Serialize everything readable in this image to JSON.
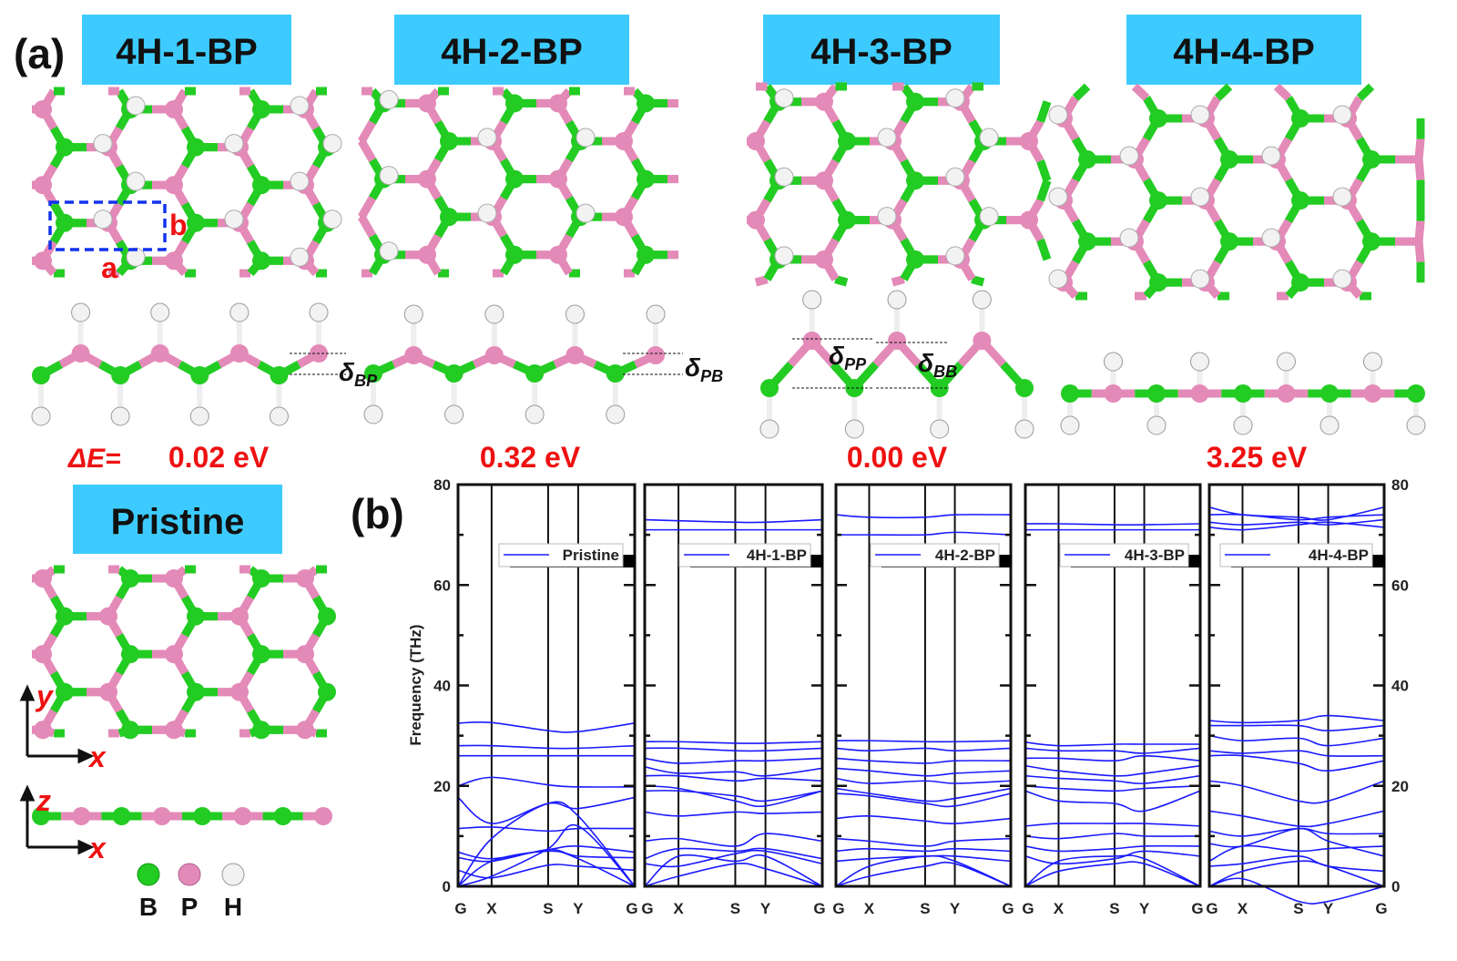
{
  "panel_a": {
    "label": "(a)",
    "structures": [
      {
        "title": "4H-1-BP",
        "delta_label": "δ",
        "delta_sub": "BP",
        "energy": "0.02 eV"
      },
      {
        "title": "4H-2-BP",
        "delta_label": "δ",
        "delta_sub": "PB",
        "energy": "0.32 eV"
      },
      {
        "title": "4H-3-BP",
        "delta_label": "δ",
        "delta_sub": "PP",
        "delta2_label": "δ",
        "delta2_sub": "BB",
        "energy": "0.00 eV"
      },
      {
        "title": "4H-4-BP",
        "energy": "3.25 eV"
      }
    ],
    "energy_prefix": "ΔE=",
    "pristine_title": "Pristine",
    "lattice_a": "a",
    "lattice_b": "b",
    "axes": {
      "y": "y",
      "x1": "x",
      "z": "z",
      "x2": "x"
    },
    "legend": [
      {
        "symbol": "B",
        "color": "#22cc22"
      },
      {
        "symbol": "P",
        "color": "#e38ab8"
      },
      {
        "symbol": "H",
        "color": "#f2f2f2"
      }
    ],
    "colors": {
      "title_box": "#3dcbff",
      "energy_text": "#ee1111",
      "boron": "#22cc22",
      "phosphorus": "#e38ab8",
      "hydrogen": "#f2f2f2",
      "cell_box": "#1133ee"
    }
  },
  "panel_b": {
    "label": "(b)"
  },
  "chart_data": {
    "type": "line",
    "ylabel": "Frequency (THz)",
    "ylim": [
      0,
      80
    ],
    "yticks": [
      "0",
      "20",
      "40",
      "60",
      "80"
    ],
    "kpoints": [
      "G",
      "X",
      "S",
      "Y",
      "G"
    ],
    "line_color": "#1a1aff",
    "zero_line_color": "#ee2222",
    "panels": [
      {
        "name": "Pristine",
        "bands": [
          [
            32.5,
            32.6,
            31,
            30.8,
            32.5
          ],
          [
            28,
            28,
            27.5,
            27.5,
            28
          ],
          [
            26,
            26,
            26,
            26,
            26
          ],
          [
            20,
            21.7,
            20.2,
            19.8,
            19.8
          ],
          [
            17.7,
            12.5,
            16.5,
            15.5,
            17.7
          ],
          [
            11.5,
            11.8,
            11,
            11.5,
            11.5
          ],
          [
            0,
            9.5,
            16.5,
            14,
            0
          ],
          [
            6.8,
            5.5,
            7.3,
            8,
            6.8
          ],
          [
            5.7,
            5,
            7.3,
            6,
            5.7
          ],
          [
            3.2,
            1.7,
            4.2,
            4,
            3.2
          ],
          [
            0,
            2,
            7.5,
            12,
            0
          ],
          [
            0,
            5,
            7,
            5.5,
            0
          ]
        ]
      },
      {
        "name": "4H-1-BP",
        "bands": [
          [
            73,
            72.8,
            72.5,
            72.5,
            73
          ],
          [
            71,
            71,
            71,
            71,
            71
          ],
          [
            28.8,
            28.8,
            28.5,
            28.5,
            28.8
          ],
          [
            27.5,
            27.5,
            27,
            27,
            27.5
          ],
          [
            25.5,
            24.5,
            25,
            25,
            25.5
          ],
          [
            23.8,
            22.5,
            22.8,
            22,
            23.5
          ],
          [
            22,
            22,
            21,
            21.5,
            21
          ],
          [
            20,
            19.5,
            17,
            16,
            19
          ],
          [
            19,
            19,
            18,
            17,
            19
          ],
          [
            14.8,
            14,
            14.8,
            14.5,
            14.8
          ],
          [
            9,
            9.5,
            8,
            10.5,
            9
          ],
          [
            5.5,
            7.5,
            7,
            7.5,
            5.5
          ],
          [
            4.5,
            4,
            6.5,
            7,
            4.5
          ],
          [
            0,
            2,
            4.5,
            3.5,
            0
          ],
          [
            0,
            6,
            5,
            6,
            0
          ]
        ]
      },
      {
        "name": "4H-2-BP",
        "bands": [
          [
            74,
            73.5,
            73.5,
            74,
            74
          ],
          [
            70,
            70,
            70,
            70.5,
            70
          ],
          [
            29,
            29,
            28.8,
            28.8,
            29
          ],
          [
            27.5,
            27,
            27.5,
            27,
            27.5
          ],
          [
            25.5,
            25,
            24.5,
            25,
            25
          ],
          [
            23.5,
            23,
            22,
            22.5,
            23
          ],
          [
            21.5,
            20.5,
            21,
            20.5,
            21
          ],
          [
            19.5,
            18.5,
            17,
            17.5,
            19.5
          ],
          [
            18.5,
            18,
            16.5,
            16,
            18.5
          ],
          [
            13.5,
            14,
            13,
            12.5,
            13.5
          ],
          [
            9.5,
            9,
            8,
            9,
            9.5
          ],
          [
            7,
            7.5,
            7,
            7.5,
            7
          ],
          [
            5,
            5.5,
            6,
            6,
            5
          ],
          [
            0,
            2,
            4,
            4.5,
            0
          ],
          [
            0,
            4,
            6,
            5,
            0
          ]
        ]
      },
      {
        "name": "4H-3-BP",
        "bands": [
          [
            72.2,
            72.2,
            72,
            72,
            72.2
          ],
          [
            71,
            71,
            71,
            71,
            71
          ],
          [
            28.7,
            28,
            28.3,
            28.3,
            28.3
          ],
          [
            27.5,
            27,
            27,
            26.5,
            27.5
          ],
          [
            25.5,
            25.5,
            25,
            26,
            25
          ],
          [
            24,
            23,
            22,
            22.5,
            24
          ],
          [
            22,
            21.5,
            21,
            20.5,
            22
          ],
          [
            20,
            19.5,
            19,
            19.5,
            20
          ],
          [
            19,
            17,
            16.5,
            15,
            19
          ],
          [
            12,
            12.5,
            12.5,
            12.5,
            12
          ],
          [
            10,
            9.5,
            10.5,
            10,
            10
          ],
          [
            8,
            7,
            7.5,
            8,
            8
          ],
          [
            6,
            4.5,
            5.5,
            7,
            6
          ],
          [
            0,
            3,
            4.5,
            4.5,
            0
          ],
          [
            0,
            5,
            6,
            5.5,
            0
          ]
        ]
      },
      {
        "name": "4H-4-BP",
        "bands": [
          [
            75.5,
            74,
            73.5,
            73,
            75.5
          ],
          [
            74,
            74,
            73,
            73.5,
            74
          ],
          [
            72.5,
            72,
            72.5,
            72,
            73
          ],
          [
            71.5,
            71,
            72,
            72.5,
            71.5
          ],
          [
            33,
            32.6,
            33,
            34,
            33
          ],
          [
            32,
            32,
            32,
            31,
            32
          ],
          [
            30,
            29,
            29.5,
            28,
            29.5
          ],
          [
            27,
            26.5,
            27,
            26,
            26
          ],
          [
            26,
            26,
            24.5,
            23,
            25
          ],
          [
            21,
            20,
            17,
            17,
            21
          ],
          [
            15,
            14,
            12,
            12.5,
            15
          ],
          [
            11,
            10,
            11.5,
            10.5,
            10.5
          ],
          [
            8.5,
            8,
            11.5,
            9,
            6
          ],
          [
            5,
            8,
            7,
            7.5,
            8
          ],
          [
            4,
            4.5,
            6,
            4,
            3
          ],
          [
            0,
            1.5,
            -3,
            -3,
            0
          ],
          [
            0,
            3,
            5,
            4,
            0
          ]
        ]
      }
    ]
  }
}
